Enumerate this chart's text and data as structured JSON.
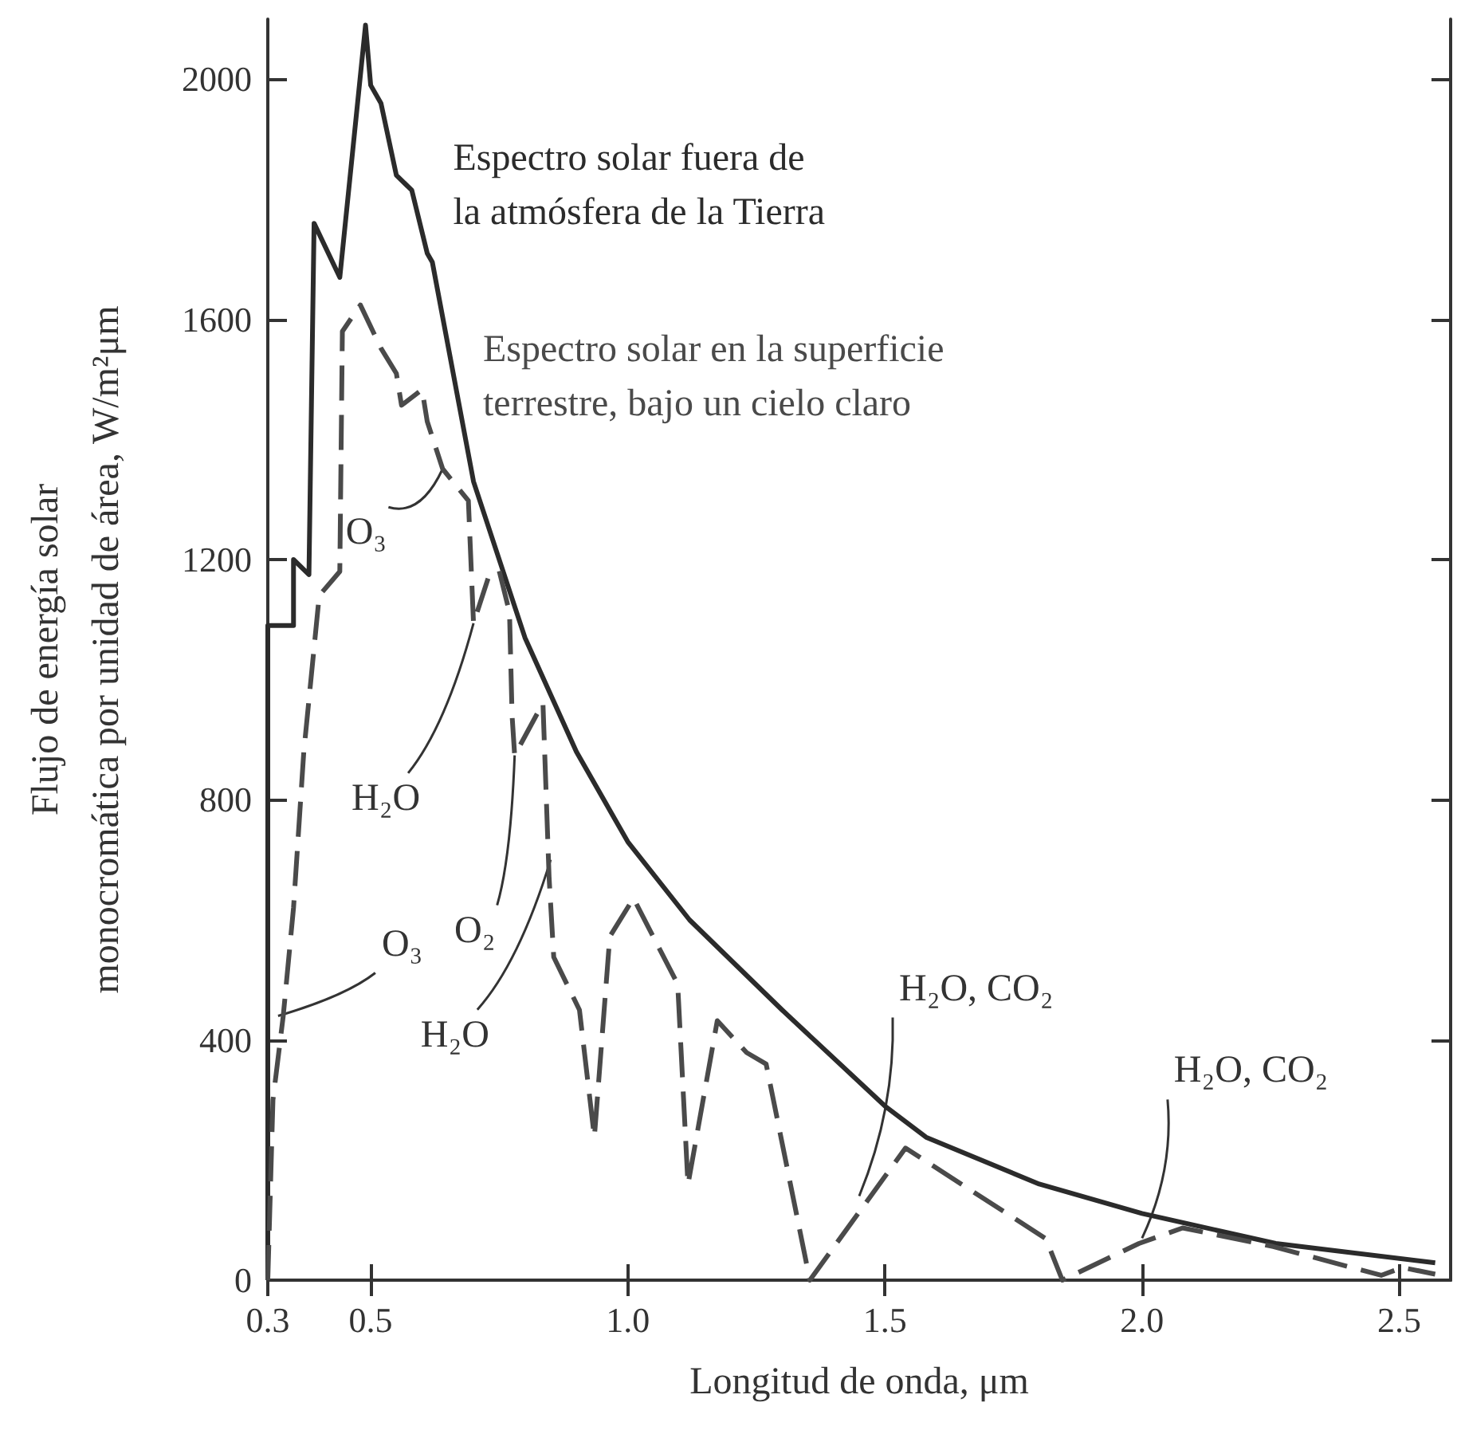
{
  "chart_data": {
    "type": "line",
    "xlabel": "Longitud de onda, μm",
    "ylabel": "Flujo de energía solar\nmonocromática por unidad de área, W/m²μm",
    "xlim": [
      0.3,
      2.6
    ],
    "ylim": [
      0,
      2100
    ],
    "xticks": [
      0.3,
      0.5,
      {
        "value": 1.0,
        "label": "1.0"
      },
      1.5,
      {
        "value": 2.0,
        "label": "2.0"
      },
      2.5
    ],
    "yticks": [
      0,
      400,
      800,
      1200,
      1600,
      2000
    ],
    "grid": false,
    "legend": false,
    "marker": "none",
    "series": [
      {
        "name": "Espectro solar fuera de\nla atmósfera de la Tierra",
        "color": "#2b2b2b",
        "line_style": "solid",
        "x": [
          0.3,
          0.3,
          0.35,
          0.35,
          0.38,
          0.39,
          0.44,
          0.49,
          0.5,
          0.52,
          0.55,
          0.58,
          0.61,
          0.62,
          0.7,
          0.8,
          0.9,
          1.0,
          1.12,
          1.3,
          1.5,
          1.58,
          1.8,
          2.0,
          2.26,
          2.57
        ],
        "values": [
          0,
          1090,
          1090,
          1200,
          1175,
          1760,
          1670,
          2090,
          1990,
          1960,
          1840,
          1815,
          1710,
          1695,
          1330,
          1070,
          880,
          730,
          600,
          450,
          290,
          238,
          160,
          111,
          61,
          29
        ]
      },
      {
        "name": "Espectro solar en la superficie\nterrestre, bajo un cielo claro",
        "color": "#4a4a4a",
        "line_style": "dashed",
        "x": [
          0.3,
          0.31,
          0.33,
          0.35,
          0.37,
          0.4,
          0.44,
          0.445,
          0.48,
          0.52,
          0.55,
          0.56,
          0.6,
          0.61,
          0.64,
          0.69,
          0.7,
          0.73,
          0.75,
          0.77,
          0.775,
          0.78,
          0.835,
          0.847,
          0.856,
          0.906,
          0.935,
          0.965,
          1.011,
          1.097,
          1.117,
          1.174,
          1.231,
          1.269,
          1.354,
          1.54,
          1.813,
          1.845,
          1.994,
          2.079,
          2.255,
          2.465,
          2.506,
          2.57
        ],
        "values": [
          0,
          300,
          440,
          620,
          880,
          1140,
          1180,
          1580,
          1624,
          1552,
          1510,
          1457,
          1483,
          1430,
          1351,
          1298,
          1094,
          1173,
          1181,
          1112,
          940,
          874,
          961,
          670,
          538,
          450,
          238,
          572,
          636,
          493,
          159,
          432,
          379,
          360,
          0,
          220,
          69,
          0,
          61,
          87,
          56,
          8,
          21,
          10
        ]
      }
    ],
    "annotations": [
      {
        "text": "O₃",
        "x": 0.64,
        "y": 1351
      },
      {
        "text": "H₂O",
        "x": 0.7,
        "y": 1094
      },
      {
        "text": "O₂",
        "x": 0.78,
        "y": 874
      },
      {
        "text": "H₂O",
        "x": 0.85,
        "y": 700
      },
      {
        "text": "O₃",
        "x": 0.32,
        "y": 440
      },
      {
        "text": "H₂O, CO₂",
        "x": 1.45,
        "y": 140
      },
      {
        "text": "H₂O, CO₂",
        "x": 2.0,
        "y": 70
      }
    ]
  }
}
